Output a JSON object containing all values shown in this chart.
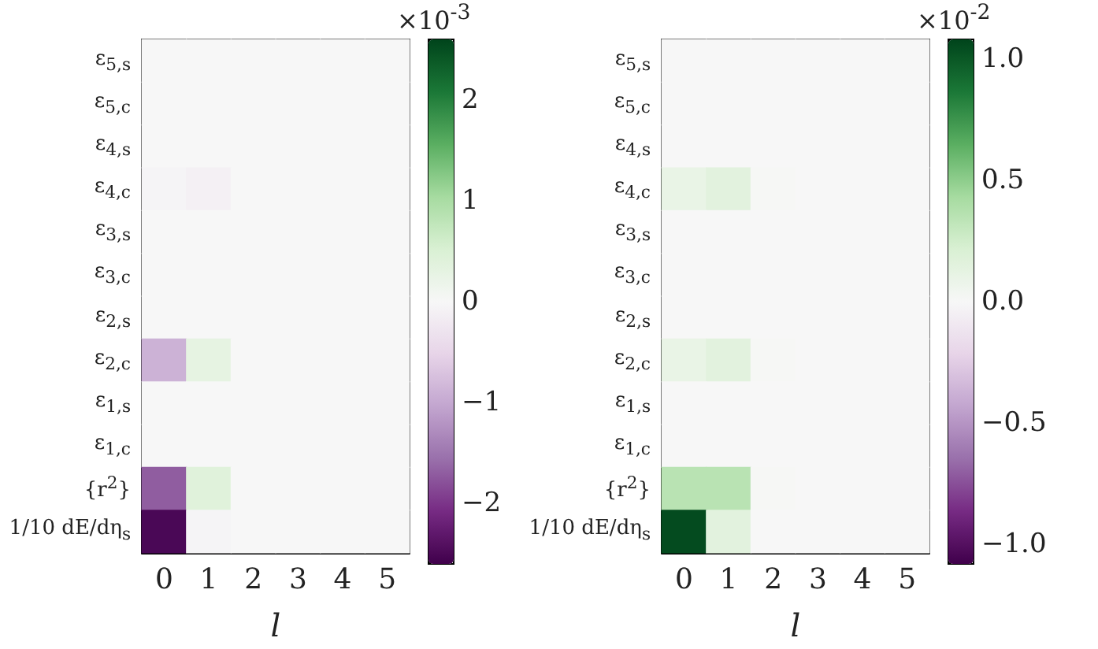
{
  "chart_data": [
    {
      "type": "heatmap",
      "xlabel": "l",
      "clabel": "×10$^{-3}$",
      "categories": [
        "0",
        "1",
        "2",
        "3",
        "4",
        "5"
      ],
      "y_categories": [
        "ε$_{5,s}$",
        "ε$_{5,c}$",
        "ε$_{4,s}$",
        "ε$_{4,c}$",
        "ε$_{3,s}$",
        "ε$_{3,c}$",
        "ε$_{2,s}$",
        "ε$_{2,c}$",
        "ε$_{1,s}$",
        "ε$_{1,c}$",
        "{r$^{2}$}",
        "1/10 dE/dη$_{s}$"
      ],
      "cells": [
        [
          0,
          0,
          0,
          0,
          0,
          0
        ],
        [
          0,
          0,
          0,
          0,
          0,
          0
        ],
        [
          0,
          0,
          0,
          0,
          0,
          0
        ],
        [
          -0.05,
          -0.1,
          0,
          0,
          0,
          0
        ],
        [
          0,
          0,
          0,
          0,
          0,
          0
        ],
        [
          0,
          0,
          0,
          0,
          0,
          0
        ],
        [
          0,
          0,
          0,
          0,
          0,
          0
        ],
        [
          -0.9,
          0.3,
          0,
          0,
          0,
          0
        ],
        [
          0,
          0,
          0,
          0,
          0,
          0
        ],
        [
          0,
          0,
          0,
          0,
          0,
          0
        ],
        [
          -1.7,
          0.4,
          0,
          0,
          0,
          0
        ],
        [
          -2.5,
          -0.05,
          0,
          0,
          0,
          0
        ]
      ],
      "clim": [
        -2.6,
        2.6
      ],
      "cticks": [
        {
          "value": -2,
          "label": "−2"
        },
        {
          "value": -1,
          "label": "−1"
        },
        0,
        1,
        2
      ]
    },
    {
      "type": "heatmap",
      "xlabel": "l",
      "clabel": "×10$^{-2}$",
      "categories": [
        "0",
        "1",
        "2",
        "3",
        "4",
        "5"
      ],
      "y_categories": [
        "ε$_{5,s}$",
        "ε$_{5,c}$",
        "ε$_{4,s}$",
        "ε$_{4,c}$",
        "ε$_{3,s}$",
        "ε$_{3,c}$",
        "ε$_{2,s}$",
        "ε$_{2,c}$",
        "ε$_{1,s}$",
        "ε$_{1,c}$",
        "{r$^{2}$}",
        "1/10 dE/dη$_{s}$"
      ],
      "cells": [
        [
          0,
          0,
          0,
          0,
          0,
          0
        ],
        [
          0,
          0,
          0,
          0,
          0,
          0
        ],
        [
          0,
          0,
          0,
          0,
          0,
          0
        ],
        [
          0.1,
          0.15,
          0.01,
          0,
          0,
          0
        ],
        [
          0,
          0,
          0,
          0,
          0,
          0
        ],
        [
          0,
          0,
          0,
          0,
          0,
          0
        ],
        [
          0,
          0,
          0,
          0,
          0,
          0
        ],
        [
          0.1,
          0.15,
          0.01,
          0,
          0,
          0
        ],
        [
          0,
          0,
          0,
          0,
          0,
          0
        ],
        [
          0,
          0,
          0,
          0,
          0,
          0
        ],
        [
          0.35,
          0.35,
          0.01,
          0,
          0,
          0
        ],
        [
          1.05,
          0.15,
          0,
          0,
          0,
          0
        ]
      ],
      "clim": [
        -1.08,
        1.08
      ],
      "cticks": [
        {
          "value": -1,
          "label": "−1.0"
        },
        {
          "value": -0.5,
          "label": "−0.5"
        },
        {
          "value": 0,
          "label": "0.0"
        },
        {
          "value": 0.5,
          "label": "0.5"
        },
        {
          "value": 1,
          "label": "1.0"
        }
      ]
    }
  ]
}
